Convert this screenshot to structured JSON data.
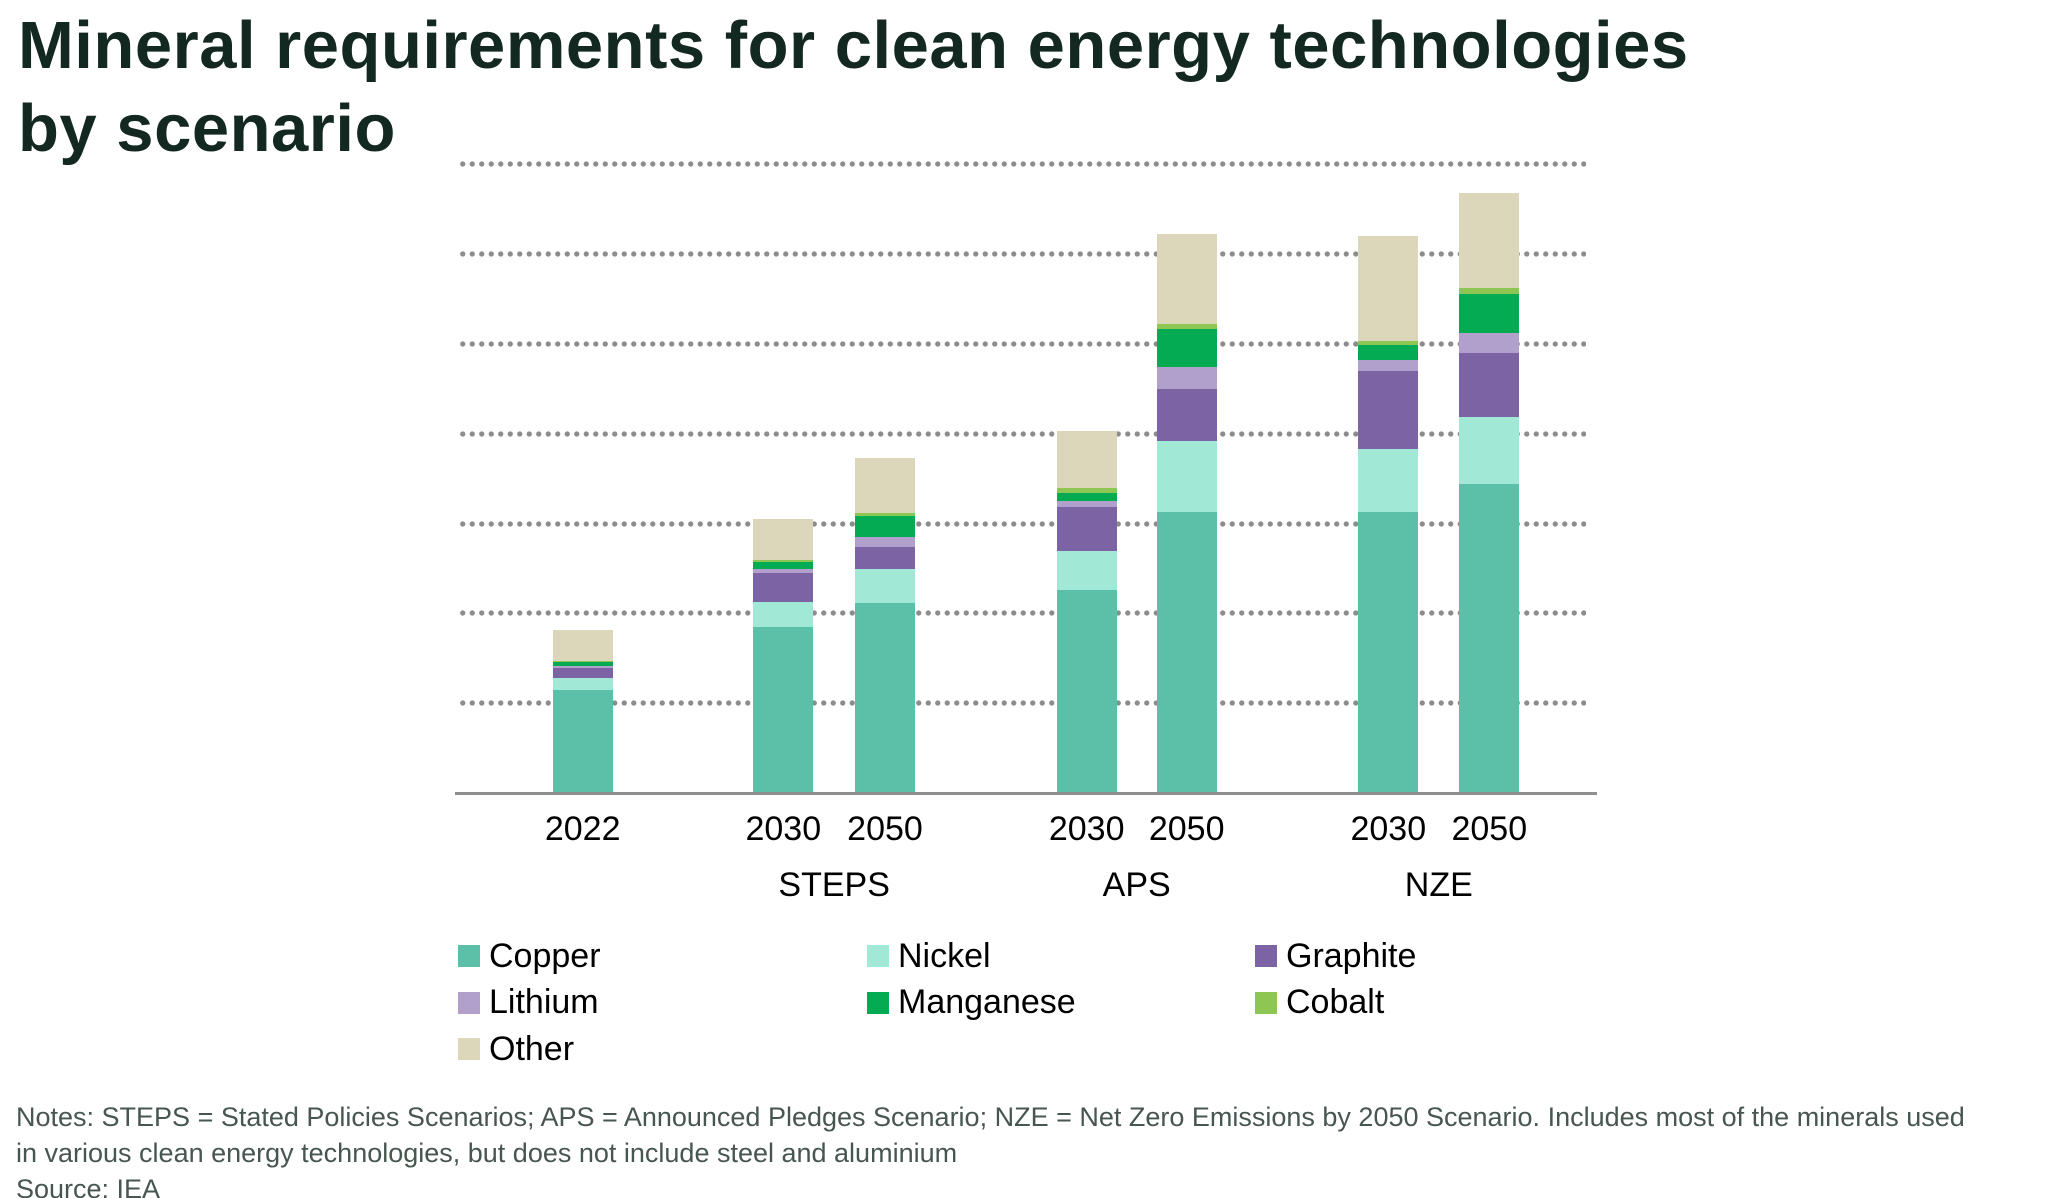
{
  "title": {
    "line1": "Mineral requirements for clean energy technologies",
    "line2": "by scenario"
  },
  "chart_data": {
    "type": "bar",
    "subtype": "stacked",
    "title": "Mineral requirements for clean energy technologies by scenario",
    "xlabel": "",
    "ylabel": "",
    "y_axis_labels_visible": false,
    "ylim": [
      0,
      7
    ],
    "grid": "7 dotted horizontal gridlines, solid x-axis baseline",
    "legend_position": "bottom",
    "value_unit": "relative gridline units (chart shows no numeric axis)",
    "stack_order_bottom_to_top": [
      "Copper",
      "Nickel",
      "Graphite",
      "Lithium",
      "Manganese",
      "Cobalt",
      "Other"
    ],
    "series": [
      {
        "name": "Copper",
        "color": "#5cc0a9",
        "values": [
          1.15,
          1.845,
          2.12,
          2.26,
          3.125,
          3.125,
          3.44
        ]
      },
      {
        "name": "Nickel",
        "color": "#a2e8d6",
        "values": [
          0.13,
          0.28,
          0.375,
          0.43,
          0.8,
          0.705,
          0.75
        ]
      },
      {
        "name": "Graphite",
        "color": "#7b63a4",
        "values": [
          0.11,
          0.33,
          0.25,
          0.49,
          0.57,
          0.865,
          0.71
        ]
      },
      {
        "name": "Lithium",
        "color": "#b1a0cb",
        "values": [
          0.02,
          0.045,
          0.11,
          0.07,
          0.25,
          0.13,
          0.22
        ]
      },
      {
        "name": "Manganese",
        "color": "#05ab52",
        "values": [
          0.045,
          0.075,
          0.23,
          0.086,
          0.42,
          0.167,
          0.44
        ]
      },
      {
        "name": "Cobalt",
        "color": "#8dc653",
        "values": [
          0.02,
          0.02,
          0.037,
          0.056,
          0.063,
          0.037,
          0.067
        ]
      },
      {
        "name": "Other",
        "color": "#dcd6ba",
        "values": [
          0.345,
          0.46,
          0.61,
          0.64,
          0.995,
          1.17,
          1.05
        ]
      }
    ],
    "categories": [
      "2022",
      "2030",
      "2050",
      "2030",
      "2050",
      "2030",
      "2050"
    ],
    "groups": [
      {
        "label": "",
        "bar_indexes": [
          0
        ]
      },
      {
        "label": "STEPS",
        "bar_indexes": [
          1,
          2
        ]
      },
      {
        "label": "APS",
        "bar_indexes": [
          3,
          4
        ]
      },
      {
        "label": "NZE",
        "bar_indexes": [
          5,
          6
        ]
      }
    ]
  },
  "legend": {
    "items": [
      {
        "label": "Copper",
        "color": "#5cc0a9"
      },
      {
        "label": "Nickel",
        "color": "#a2e8d6"
      },
      {
        "label": "Graphite",
        "color": "#7b63a4"
      },
      {
        "label": "Lithium",
        "color": "#b1a0cb"
      },
      {
        "label": "Manganese",
        "color": "#05ab52"
      },
      {
        "label": "Cobalt",
        "color": "#8dc653"
      },
      {
        "label": "Other",
        "color": "#dcd6ba"
      }
    ]
  },
  "notes": {
    "line1": "Notes: STEPS = Stated Policies Scenarios; APS = Announced Pledges Scenario; NZE = Net Zero Emissions by 2050 Scenario. Includes most of the minerals used",
    "line2": "in various clean energy technologies, but does not include steel and aluminium",
    "source": "Source: IEA"
  },
  "colors": {
    "title_text": "#142822",
    "axis_labels": "#000000",
    "gridline_dots": "#8c8c8c",
    "axis_line": "#8f8f8f",
    "notes_text": "#47564f",
    "background": "#ffffff"
  }
}
